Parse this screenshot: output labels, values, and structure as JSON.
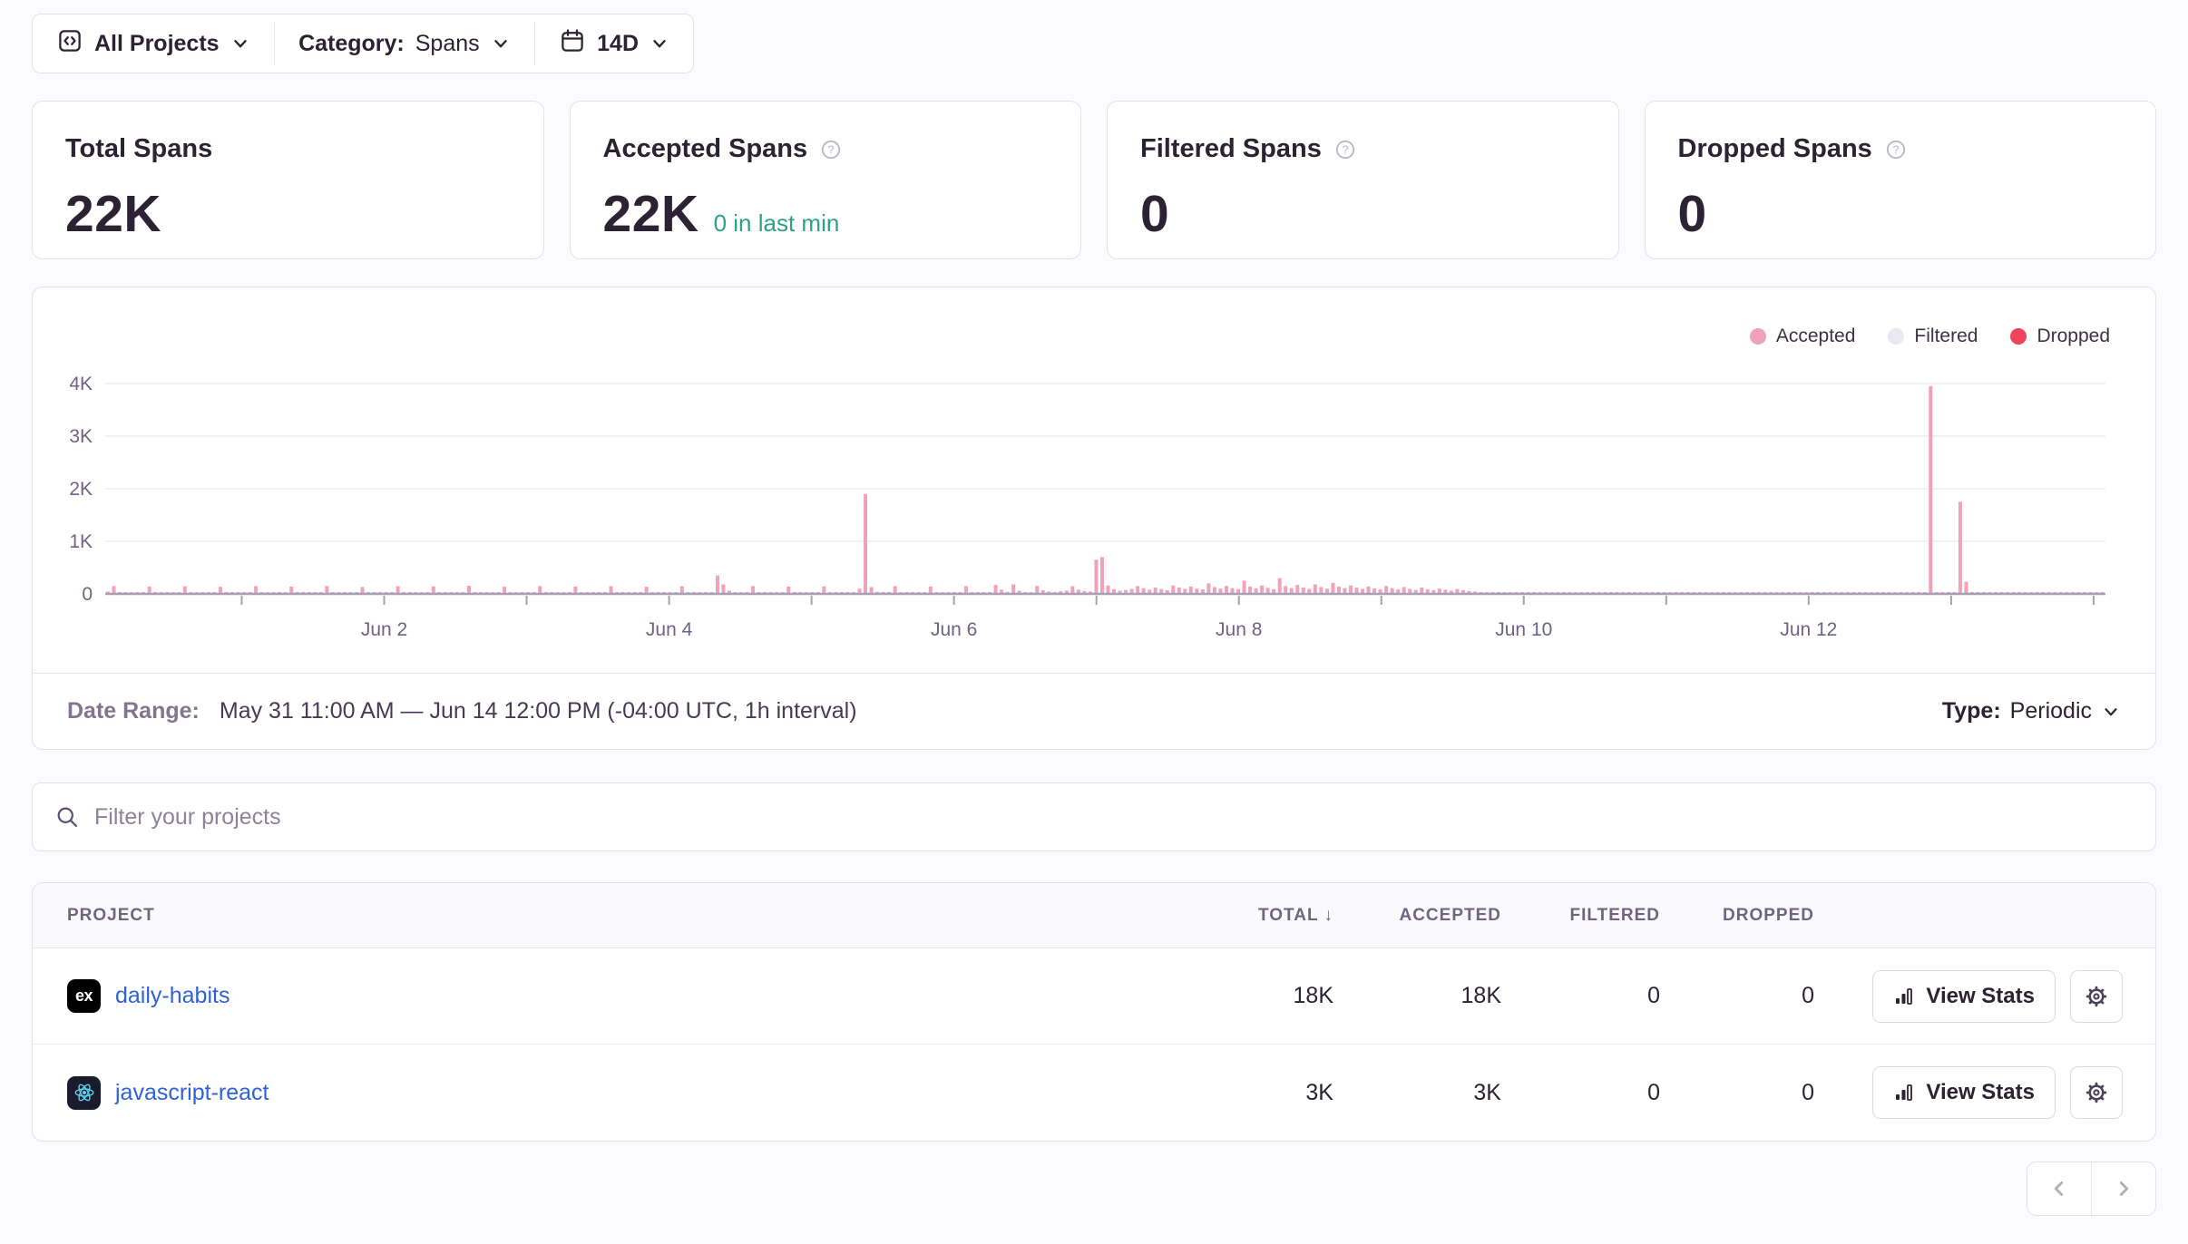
{
  "toolbar": {
    "projects_label": "All Projects",
    "category_label": "Category:",
    "category_value": "Spans",
    "date_window": "14D"
  },
  "cards": [
    {
      "title": "Total Spans",
      "value": "22K",
      "sub": ""
    },
    {
      "title": "Accepted Spans",
      "value": "22K",
      "sub": "0 in last min"
    },
    {
      "title": "Filtered Spans",
      "value": "0",
      "sub": ""
    },
    {
      "title": "Dropped Spans",
      "value": "0",
      "sub": ""
    }
  ],
  "chart_data": {
    "type": "bar",
    "x_range": [
      "May 31 11:00 AM",
      "Jun 14 12:00 PM"
    ],
    "interval": "1h",
    "num_bars": 338,
    "ylim": [
      0,
      4000
    ],
    "y_tick_labels": [
      "0",
      "1K",
      "2K",
      "3K",
      "4K"
    ],
    "x_tick_label_hours": [
      47,
      95,
      143,
      191,
      239,
      287
    ],
    "x_tick_labels": [
      "Jun 2",
      "Jun 4",
      "Jun 6",
      "Jun 8",
      "Jun 10",
      "Jun 12"
    ],
    "x_minor_tick_hours": [
      23,
      47,
      71,
      95,
      119,
      143,
      167,
      191,
      215,
      239,
      263,
      287,
      311,
      335
    ],
    "legend_position": "top-right",
    "grid": true,
    "series": [
      {
        "name": "Accepted",
        "color": "#f0a2b8",
        "values": [
          45,
          150,
          30,
          22,
          18,
          24,
          32,
          140,
          28,
          20,
          16,
          22,
          30,
          145,
          26,
          19,
          15,
          21,
          28,
          135,
          24,
          18,
          15,
          20,
          28,
          148,
          30,
          21,
          17,
          23,
          31,
          138,
          27,
          19,
          16,
          21,
          29,
          150,
          28,
          20,
          16,
          22,
          30,
          132,
          25,
          18,
          14,
          19,
          26,
          145,
          29,
          20,
          16,
          22,
          30,
          142,
          26,
          18,
          15,
          20,
          28,
          155,
          30,
          21,
          17,
          23,
          31,
          136,
          24,
          17,
          14,
          18,
          25,
          150,
          28,
          20,
          15,
          21,
          29,
          140,
          27,
          19,
          15,
          21,
          28,
          148,
          29,
          20,
          16,
          22,
          30,
          135,
          26,
          19,
          15,
          20,
          24,
          146,
          28,
          19,
          15,
          21,
          28,
          350,
          180,
          60,
          25,
          20,
          27,
          150,
          28,
          20,
          16,
          21,
          29,
          138,
          25,
          18,
          15,
          19,
          26,
          144,
          27,
          19,
          15,
          20,
          28,
          100,
          1900,
          130,
          40,
          24,
          30,
          148,
          28,
          20,
          16,
          22,
          29,
          140,
          26,
          18,
          15,
          20,
          25,
          150,
          29,
          20,
          16,
          22,
          170,
          80,
          40,
          180,
          60,
          35,
          30,
          152,
          70,
          45,
          35,
          50,
          60,
          145,
          80,
          55,
          45,
          650,
          700,
          160,
          90,
          60,
          75,
          95,
          150,
          110,
          80,
          120,
          90,
          70,
          160,
          120,
          95,
          140,
          100,
          85,
          200,
          130,
          100,
          150,
          110,
          90,
          250,
          140,
          105,
          160,
          115,
          90,
          300,
          150,
          110,
          170,
          120,
          95,
          180,
          130,
          100,
          210,
          140,
          110,
          160,
          120,
          95,
          140,
          105,
          85,
          150,
          110,
          85,
          130,
          95,
          75,
          120,
          90,
          70,
          100,
          80,
          60,
          90,
          70,
          55,
          45,
          35,
          12,
          12,
          10,
          12,
          10,
          12,
          10,
          12,
          10,
          12,
          10,
          12,
          10,
          12,
          10,
          12,
          10,
          12,
          10,
          12,
          10,
          12,
          10,
          12,
          10,
          12,
          10,
          12,
          10,
          12,
          10,
          12,
          10,
          12,
          10,
          12,
          10,
          12,
          10,
          12,
          10,
          12,
          10,
          12,
          10,
          12,
          10,
          12,
          10,
          12,
          10,
          12,
          10,
          12,
          10,
          12,
          10,
          12,
          10,
          12,
          10,
          12,
          10,
          12,
          10,
          12,
          10,
          12,
          10,
          12,
          10,
          12,
          10,
          12,
          10,
          3950,
          12,
          10,
          12,
          10,
          1750,
          230,
          15,
          12,
          10,
          12,
          10,
          12,
          10,
          12,
          10,
          12,
          10,
          12,
          10,
          12,
          10,
          12,
          10,
          12,
          10,
          12,
          10,
          12,
          10
        ]
      },
      {
        "name": "Filtered",
        "color": "#e9e7ef",
        "values": [],
        "constant": 0
      },
      {
        "name": "Dropped",
        "color": "#f1445a",
        "values": [],
        "constant": 0
      }
    ]
  },
  "chart_footer": {
    "date_range_label": "Date Range:",
    "date_range_value": "May 31 11:00 AM — Jun 14 12:00 PM (-04:00 UTC, 1h interval)",
    "type_label": "Type:",
    "type_value": "Periodic"
  },
  "filter": {
    "placeholder": "Filter your projects"
  },
  "table": {
    "columns": [
      "PROJECT",
      "TOTAL",
      "ACCEPTED",
      "FILTERED",
      "DROPPED"
    ],
    "sorted_column": "TOTAL",
    "view_stats_label": "View Stats",
    "rows": [
      {
        "name": "daily-habits",
        "platform": "expo",
        "total": "18K",
        "accepted": "18K",
        "filtered": "0",
        "dropped": "0"
      },
      {
        "name": "javascript-react",
        "platform": "react",
        "total": "3K",
        "accepted": "3K",
        "filtered": "0",
        "dropped": "0"
      }
    ]
  }
}
